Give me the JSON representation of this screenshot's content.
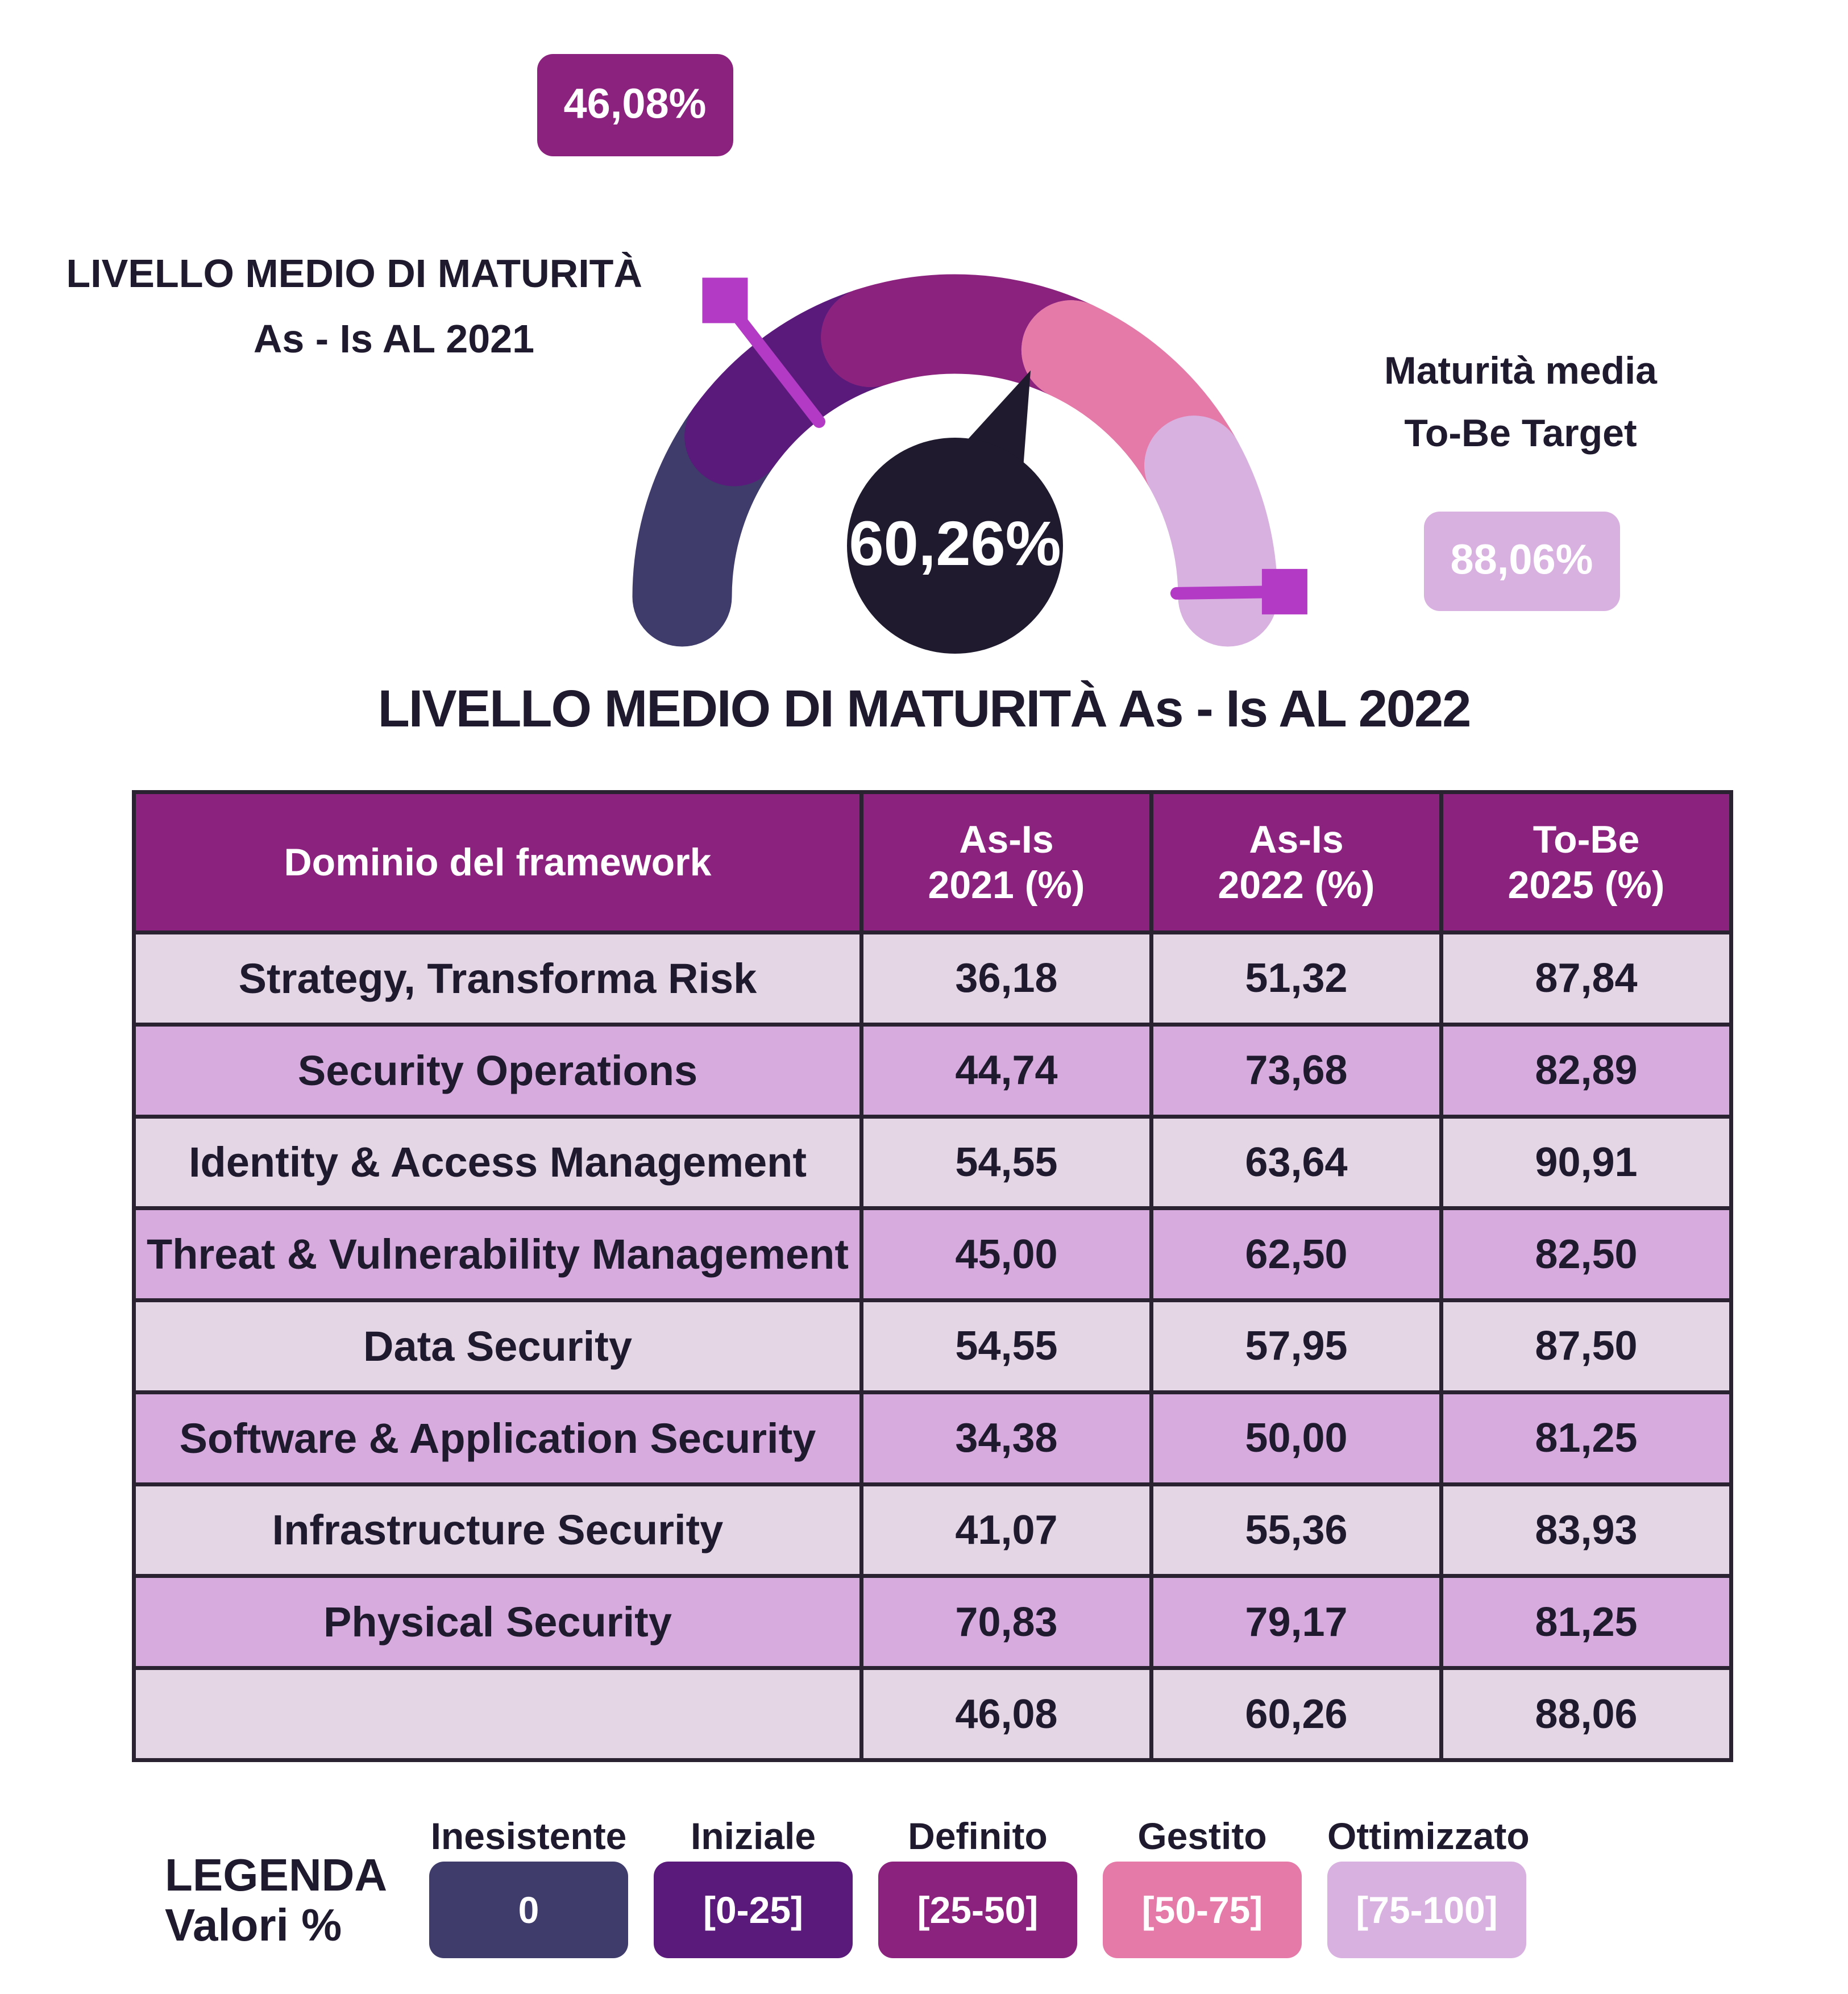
{
  "gauge": {
    "value_label": "60,26%",
    "value": 60.26,
    "as_is_2021_label": "46,08%",
    "as_is_2021_value": 46.08,
    "to_be_label": "88,06%",
    "to_be_value": 88.06,
    "left_caption_line1": "LIVELLO MEDIO DI MATURITÀ",
    "left_caption_line2": "As - Is AL 2021",
    "right_caption_line1": "Maturità media",
    "right_caption_line2": "To-Be Target",
    "title": "LIVELLO MEDIO DI MATURITÀ As - Is AL 2022",
    "colors": {
      "inesistente": "#3f3c6b",
      "iniziale": "#5a1a7c",
      "definito": "#8b237e",
      "gestito": "#e57aa9",
      "ottimizzato": "#d8b1e0",
      "needle": "#1f1a2e",
      "marker": "#b33ac4"
    }
  },
  "table": {
    "headers": [
      {
        "line1": "Dominio del framework",
        "line2": ""
      },
      {
        "line1": "As-Is",
        "line2": "2021 (%)"
      },
      {
        "line1": "As-Is",
        "line2": "2022 (%)"
      },
      {
        "line1": "To-Be",
        "line2": "2025 (%)"
      }
    ],
    "rows": [
      [
        "Strategy, Transforma Risk",
        "36,18",
        "51,32",
        "87,84"
      ],
      [
        "Security Operations",
        "44,74",
        "73,68",
        "82,89"
      ],
      [
        "Identity & Access Management",
        "54,55",
        "63,64",
        "90,91"
      ],
      [
        "Threat & Vulnerability Management",
        "45,00",
        "62,50",
        "82,50"
      ],
      [
        "Data Security",
        "54,55",
        "57,95",
        "87,50"
      ],
      [
        "Software & Application Security",
        "34,38",
        "50,00",
        "81,25"
      ],
      [
        "Infrastructure Security",
        "41,07",
        "55,36",
        "83,93"
      ],
      [
        "Physical Security",
        "70,83",
        "79,17",
        "81,25"
      ],
      [
        "",
        "46,08",
        "60,26",
        "88,06"
      ]
    ]
  },
  "legend": {
    "title_line1": "LEGENDA",
    "title_line2": "Valori %",
    "items": [
      {
        "name": "Inesistente",
        "range": "0",
        "color": "#3f3c6b",
        "text_color": "#ffffff"
      },
      {
        "name": "Iniziale",
        "range": "[0-25]",
        "color": "#5a1a7c",
        "text_color": "#ffffff"
      },
      {
        "name": "Definito",
        "range": "[25-50]",
        "color": "#8b237e",
        "text_color": "#ffffff"
      },
      {
        "name": "Gestito",
        "range": "[50-75]",
        "color": "#e57aa9",
        "text_color": "#ffffff"
      },
      {
        "name": "Ottimizzato",
        "range": "[75-100]",
        "color": "#d8b1e0",
        "text_color": "#ffffff"
      }
    ]
  },
  "chart_data": {
    "type": "table",
    "title": "LIVELLO MEDIO DI MATURITÀ As - Is AL 2022",
    "columns": [
      "Dominio del framework",
      "As-Is 2021 (%)",
      "As-Is 2022 (%)",
      "To-Be 2025 (%)"
    ],
    "categories": [
      "Strategy, Transforma Risk",
      "Security Operations",
      "Identity & Access Management",
      "Threat & Vulnerability Management",
      "Data Security",
      "Software & Application Security",
      "Infrastructure Security",
      "Physical Security",
      ""
    ],
    "series": [
      {
        "name": "As-Is 2021 (%)",
        "values": [
          36.18,
          44.74,
          54.55,
          45.0,
          54.55,
          34.38,
          41.07,
          70.83,
          46.08
        ]
      },
      {
        "name": "As-Is 2022 (%)",
        "values": [
          51.32,
          73.68,
          63.64,
          62.5,
          57.95,
          50.0,
          55.36,
          79.17,
          60.26
        ]
      },
      {
        "name": "To-Be 2025 (%)",
        "values": [
          87.84,
          82.89,
          90.91,
          82.5,
          87.5,
          81.25,
          83.93,
          81.25,
          88.06
        ]
      }
    ],
    "gauge": {
      "value": 60.26,
      "as_is_2021": 46.08,
      "to_be_target": 88.06,
      "range": [
        0,
        100
      ]
    }
  }
}
